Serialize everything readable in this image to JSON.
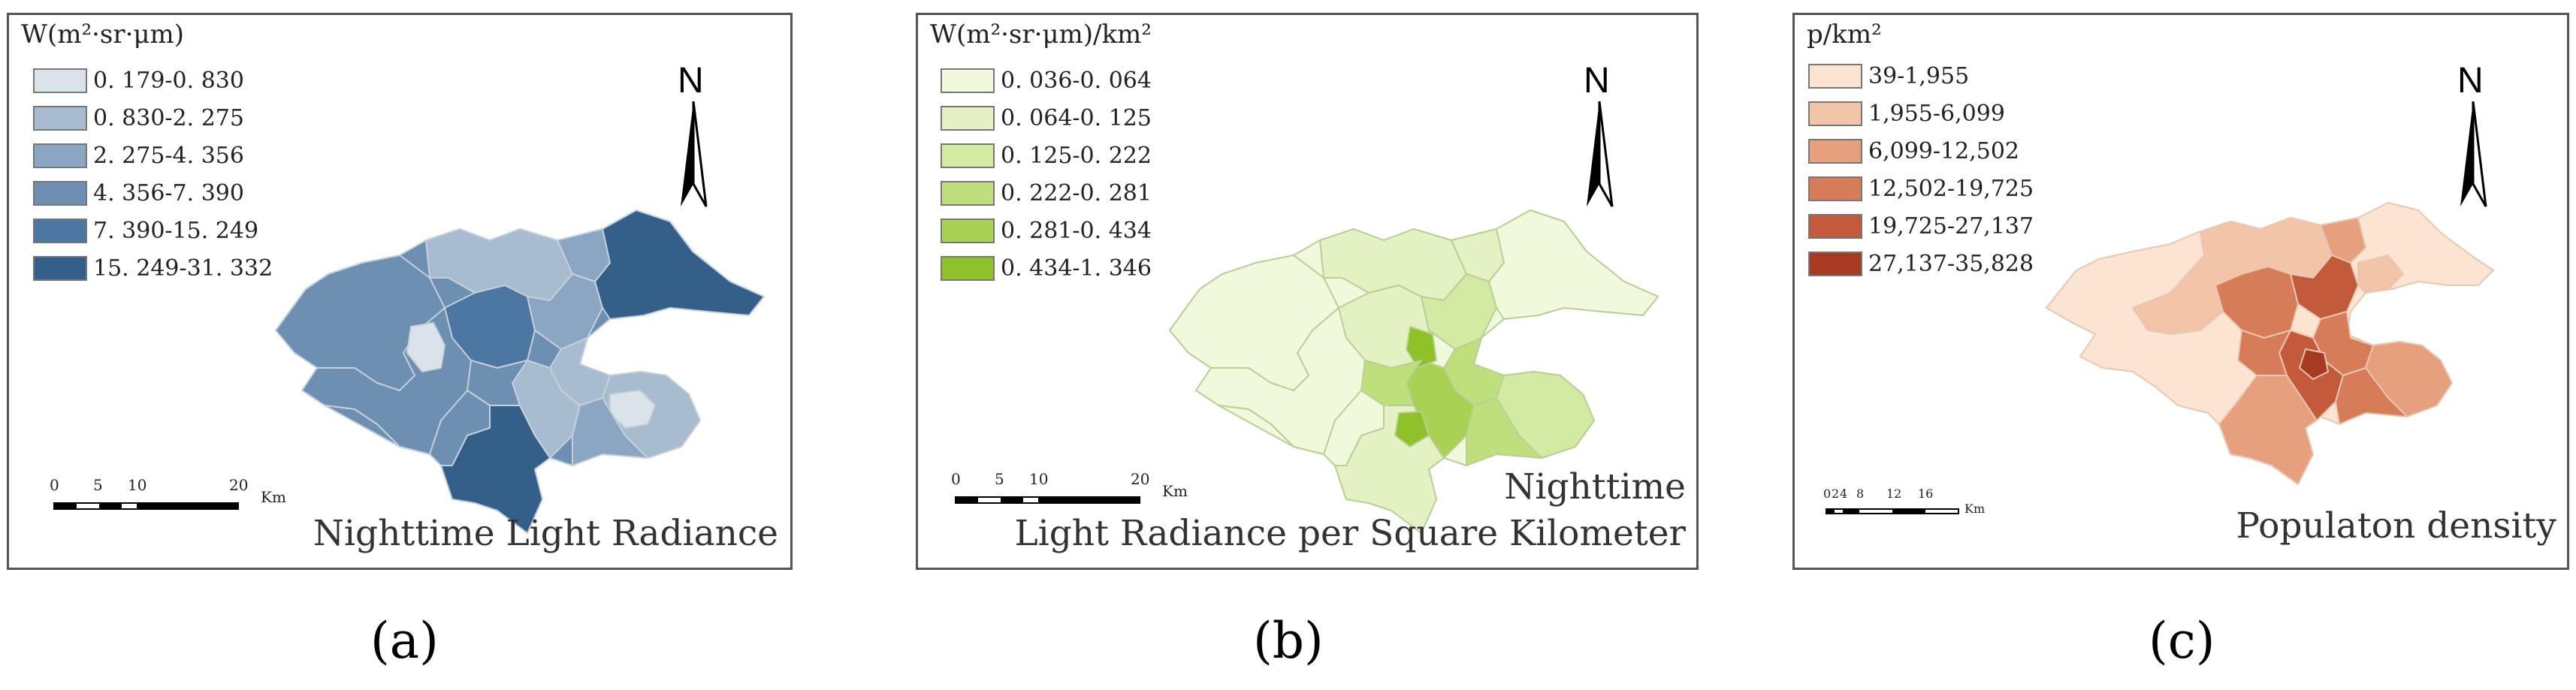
{
  "panels": [
    {
      "id": "a",
      "legend_title": "W(m²·sr·μm)",
      "legend": [
        {
          "label": "0. 179-0. 830",
          "color": "#dbe3ea"
        },
        {
          "label": "0. 830-2. 275",
          "color": "#a7bcce"
        },
        {
          "label": "2. 275-4. 356",
          "color": "#8aa6c2"
        },
        {
          "label": "4. 356-7. 390",
          "color": "#6d8fb2"
        },
        {
          "label": "7. 390-15. 249",
          "color": "#4d77a3"
        },
        {
          "label": "15. 249-31. 332",
          "color": "#335f89"
        }
      ],
      "north": "N",
      "scale": {
        "ticks": [
          "0",
          "5",
          "10",
          "20"
        ],
        "unit": "Km"
      },
      "title": "Nighttime Light Radiance",
      "label": "(a)"
    },
    {
      "id": "b",
      "legend_title": "W(m²·sr·μm)/km²",
      "legend": [
        {
          "label": "0. 036-0. 064",
          "color": "#f1f9dc"
        },
        {
          "label": "0. 064-0. 125",
          "color": "#e4f2c3"
        },
        {
          "label": "0. 125-0. 222",
          "color": "#d3eaa3"
        },
        {
          "label": "0. 222-0. 281",
          "color": "#bfdf7c"
        },
        {
          "label": "0. 281-0. 434",
          "color": "#a9d153"
        },
        {
          "label": "0. 434-1. 346",
          "color": "#8fc128"
        }
      ],
      "north": "N",
      "scale": {
        "ticks": [
          "0",
          "5",
          "10",
          "20"
        ],
        "unit": "Km"
      },
      "title_line1": "Nighttime",
      "title_line2": "Light Radiance per Square Kilometer",
      "label": "(b)"
    },
    {
      "id": "c",
      "legend_title": "p/km²",
      "legend": [
        {
          "label": "39-1,955",
          "color": "#fbe5d2"
        },
        {
          "label": "1,955-6,099",
          "color": "#f2c5a8"
        },
        {
          "label": "6,099-12,502",
          "color": "#e6a07d"
        },
        {
          "label": "12,502-19,725",
          "color": "#d77c59"
        },
        {
          "label": "19,725-27,137",
          "color": "#c45a3c"
        },
        {
          "label": "27,137-35,828",
          "color": "#a83a21"
        }
      ],
      "north": "N",
      "scale": {
        "ticks": [
          "0",
          "2",
          "4",
          "8",
          "12",
          "16"
        ],
        "unit": "Km"
      },
      "title": "Populaton density",
      "label": "(c)"
    }
  ]
}
